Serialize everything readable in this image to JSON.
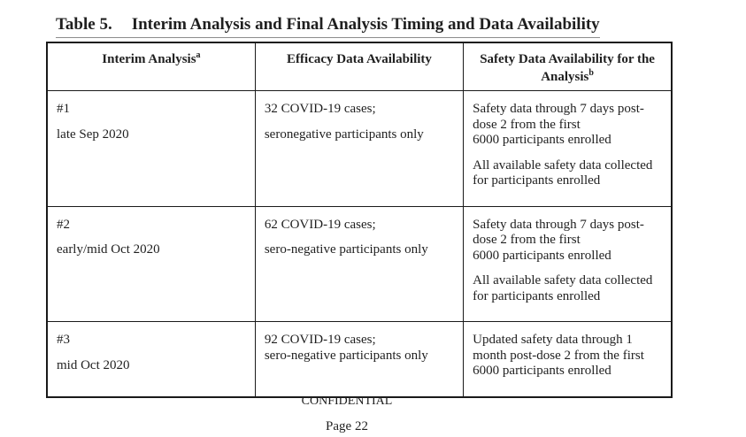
{
  "caption": {
    "label": "Table 5.",
    "title": "Interim Analysis and Final Analysis Timing and Data Availability"
  },
  "table": {
    "headers": [
      {
        "text": "Interim Analysis",
        "sup": "a"
      },
      {
        "text": "Efficacy Data Availability",
        "sup": ""
      },
      {
        "text": "Safety Data Availability for the Analysis",
        "sup": "b"
      }
    ],
    "rows": [
      {
        "interim": [
          [
            "#1"
          ],
          [
            "late Sep 2020"
          ]
        ],
        "efficacy": [
          [
            "32 COVID-19 cases;"
          ],
          [
            "seronegative participants only"
          ]
        ],
        "safety": [
          [
            "Safety data through 7 days post-",
            "dose 2 from the first",
            "6000 participants enrolled"
          ],
          [
            "All available safety data collected",
            "for participants enrolled"
          ]
        ]
      },
      {
        "interim": [
          [
            "#2"
          ],
          [
            "early/mid Oct 2020"
          ]
        ],
        "efficacy": [
          [
            "62 COVID-19 cases;"
          ],
          [
            "sero-negative participants only"
          ]
        ],
        "safety": [
          [
            "Safety data through 7 days post-",
            "dose 2 from the first",
            "6000 participants enrolled"
          ],
          [
            "All available safety data collected",
            "for participants enrolled"
          ]
        ]
      },
      {
        "interim": [
          [
            "#3"
          ],
          [
            "mid Oct 2020"
          ]
        ],
        "efficacy": [
          [
            "92 COVID-19 cases;",
            "sero-negative participants only"
          ]
        ],
        "safety": [
          [
            "Updated safety data through 1",
            "month post-dose 2 from the first",
            "6000 participants enrolled"
          ]
        ]
      }
    ]
  },
  "footer": {
    "confidential": "CONFIDENTIAL",
    "page_number": "Page 22"
  }
}
